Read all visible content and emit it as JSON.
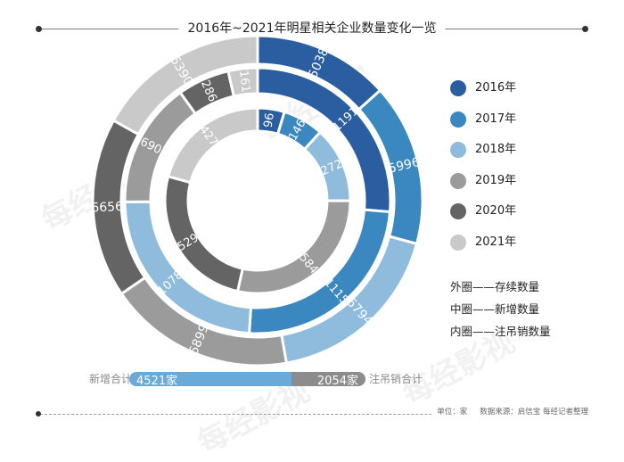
{
  "title": "2016年~2021年明星相关企业数量变化一览",
  "chart_data": {
    "type": "multi-ring donut",
    "title": "2016年~2021年明星相关企业数量变化一览",
    "legend": [
      "2016年",
      "2017年",
      "2018年",
      "2019年",
      "2020年",
      "2021年"
    ],
    "colors": [
      "#2b5ea0",
      "#3a88bf",
      "#8fbcdc",
      "#9b9b9b",
      "#646464",
      "#c9c9c9"
    ],
    "rings": [
      {
        "name": "存续数量",
        "position": "outer",
        "values": [
          5038,
          5996,
          6794,
          6899,
          6656,
          6390
        ]
      },
      {
        "name": "新增数量",
        "position": "middle",
        "values": [
          1191,
          1115,
          1078,
          690,
          286,
          161
        ]
      },
      {
        "name": "注吊销数量",
        "position": "inner",
        "values": [
          96,
          146,
          272,
          584,
          529,
          427
        ]
      }
    ]
  },
  "notes": [
    "外圈——存续数量",
    "中圈——新增数量",
    "内圈——注吊销数量"
  ],
  "totals": {
    "new_label": "新增合计",
    "new_value": "4521家",
    "new_total": 4521,
    "cancel_label": "注吊销合计",
    "cancel_value": "2054家",
    "cancel_total": 2054
  },
  "footer": {
    "unit": "单位：家",
    "source": "数据来源：启信宝 每经记者整理"
  },
  "watermark": "每经影视"
}
